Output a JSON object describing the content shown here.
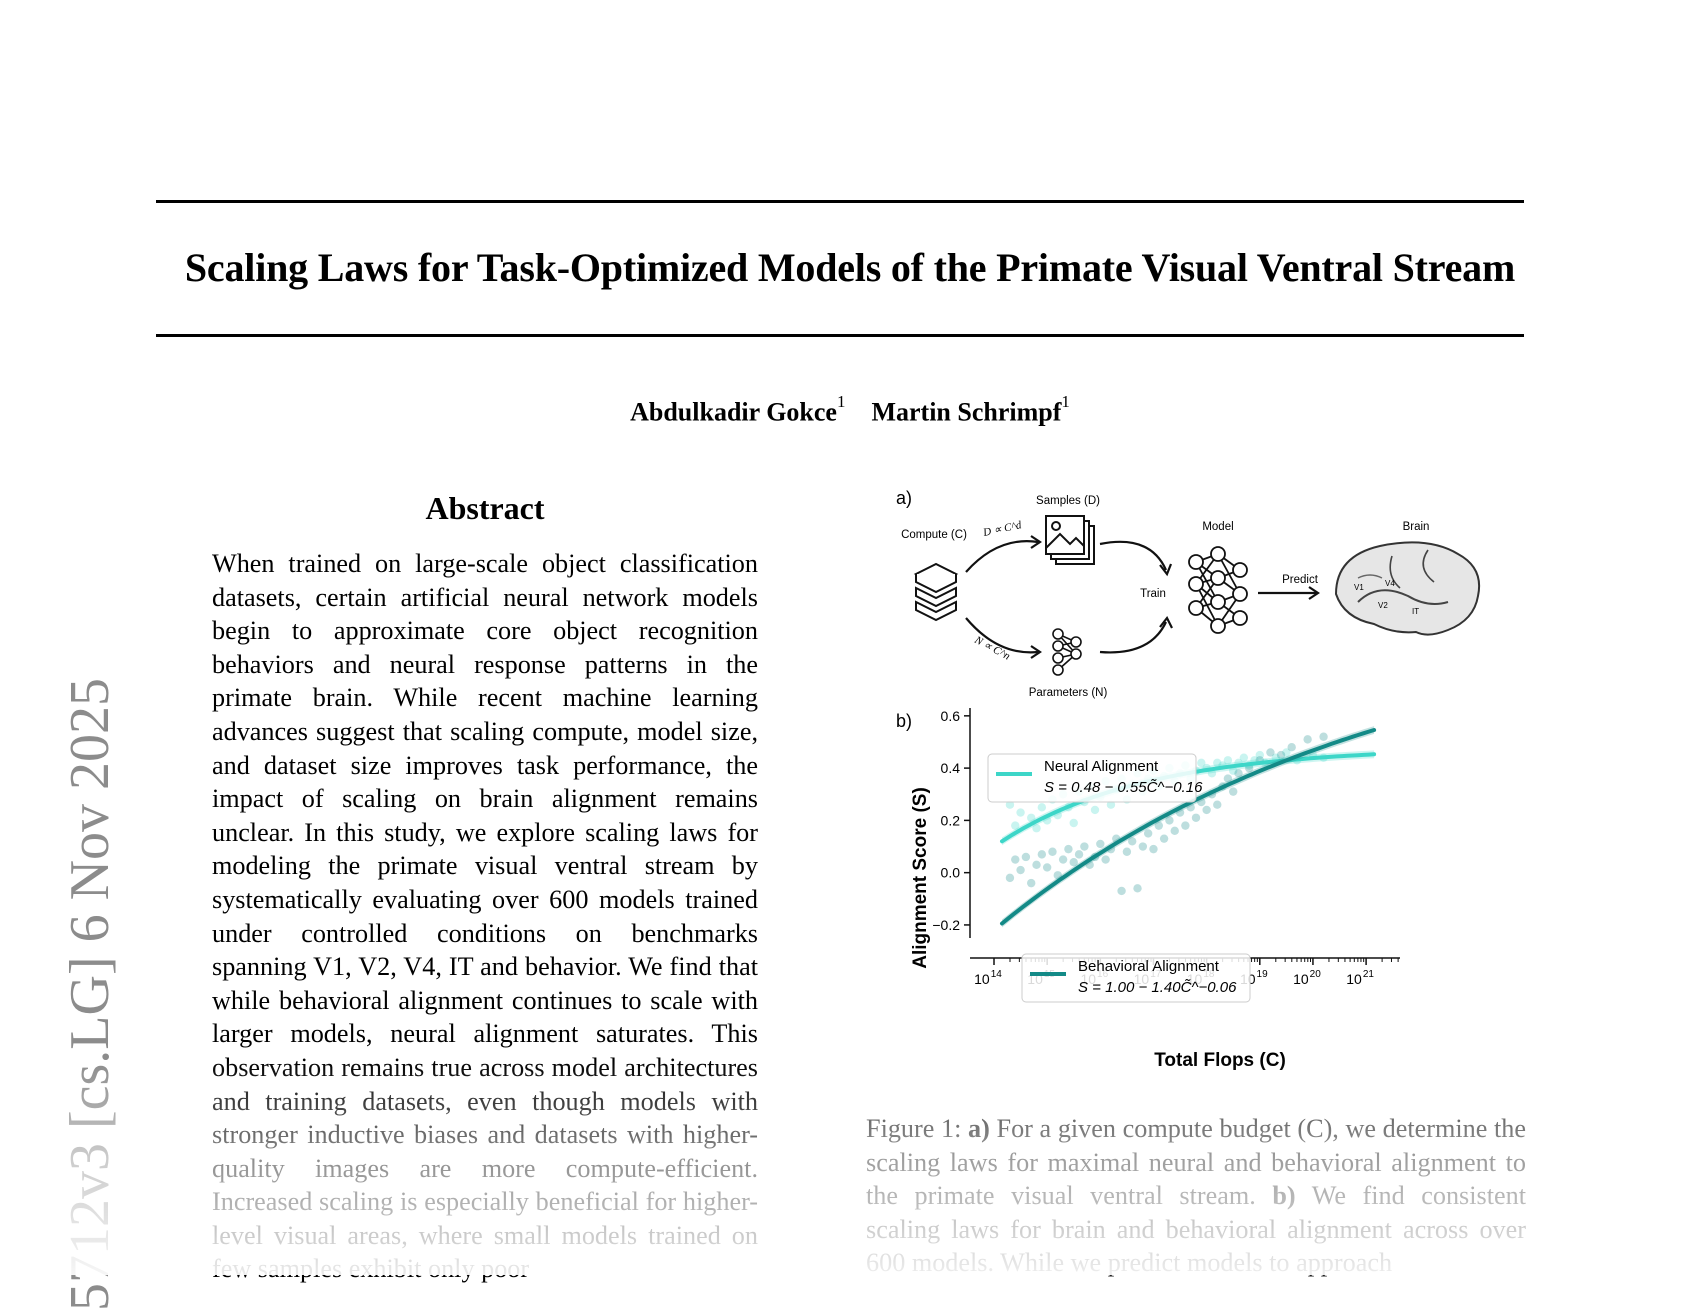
{
  "paper": {
    "title": "Scaling Laws for Task-Optimized Models of the Primate Visual Ventral Stream",
    "authors": [
      {
        "name": "Abdulkadir Gokce",
        "affiliation": "1"
      },
      {
        "name": "Martin Schrimpf",
        "affiliation": "1"
      }
    ],
    "arxiv_stamp": "5712v3  [cs.LG]  6 Nov 2025",
    "abstract_heading": "Abstract",
    "abstract": "When trained on large-scale object classification datasets, certain artificial neural network models begin to approximate core object recognition behaviors and neural response patterns in the primate brain. While recent machine learning advances suggest that scaling compute, model size, and dataset size improves task performance, the impact of scaling on brain alignment remains unclear. In this study, we explore scaling laws for modeling the primate visual ventral stream by systematically evaluating over 600 models trained under controlled conditions on benchmarks spanning V1, V2, V4, IT and behavior. We find that while behavioral alignment continues to scale with larger models, neural alignment saturates. This observation remains true across model architectures and training datasets, even though models with stronger inductive biases and datasets with higher-quality images are more compute-efficient. Increased scaling is especially beneficial for higher-level visual areas, where small models trained on few samples exhibit only poor",
    "caption_prefix": "Figure 1: ",
    "caption_a_label": "a)",
    "caption_a": " For a given compute budget (C), we determine the scaling laws for maximal neural and behavioral alignment to the primate visual ventral stream. ",
    "caption_b_label": "b)",
    "caption_b": " We find consistent scaling laws for brain and behavioral alignment across over 600 models. While we predict models to approach"
  },
  "figure_a": {
    "panel_label": "a)",
    "compute_label": "Compute (C)",
    "samples_label": "Samples (D)",
    "params_label": "Parameters (N)",
    "model_label": "Model",
    "brain_label": "Brain",
    "train_label": "Train",
    "predict_label": "Predict",
    "d_formula": "D ∝ C^d",
    "n_formula": "N ∝ C^n",
    "brain_areas": [
      "V1",
      "V4",
      "V2",
      "IT"
    ]
  },
  "chart_data": {
    "type": "scatter",
    "panel_label": "b)",
    "xlabel": "Total Flops (C)",
    "ylabel": "Alignment Score (S)",
    "x_scale": "log",
    "xlim": [
      100000000000000.0,
      1e+21
    ],
    "ylim": [
      -0.25,
      0.63
    ],
    "x_ticks": [
      "10^14",
      "10^15",
      "10^16",
      "10^17",
      "10^18",
      "10^19",
      "10^20",
      "10^21"
    ],
    "y_ticks": [
      "−0.2",
      "0.0",
      "0.2",
      "0.4",
      "0.6"
    ],
    "legend_position": "top-left / bottom-center",
    "series": [
      {
        "name": "Neural Alignment",
        "formula": "S = 0.48 − 0.55C̃^−0.16",
        "color": "#3dd6c8",
        "fit": {
          "a": 0.48,
          "b": 0.55,
          "c": 0.16,
          "x_ref_log10": 13.0
        },
        "x_range_log10": [
          14.15,
          21.2
        ],
        "points_log10x_y": [
          [
            14.3,
            0.26
          ],
          [
            14.4,
            0.18
          ],
          [
            14.5,
            0.23
          ],
          [
            14.7,
            0.21
          ],
          [
            14.8,
            0.17
          ],
          [
            14.9,
            0.25
          ],
          [
            15.0,
            0.2
          ],
          [
            15.1,
            0.28
          ],
          [
            15.2,
            0.22
          ],
          [
            15.3,
            0.3
          ],
          [
            15.4,
            0.25
          ],
          [
            15.5,
            0.19
          ],
          [
            15.6,
            0.31
          ],
          [
            15.7,
            0.27
          ],
          [
            15.8,
            0.33
          ],
          [
            15.9,
            0.24
          ],
          [
            16.0,
            0.29
          ],
          [
            16.1,
            0.35
          ],
          [
            16.2,
            0.26
          ],
          [
            16.3,
            0.32
          ],
          [
            16.4,
            0.36
          ],
          [
            16.5,
            0.28
          ],
          [
            16.6,
            0.34
          ],
          [
            16.7,
            0.38
          ],
          [
            16.8,
            0.31
          ],
          [
            16.9,
            0.36
          ],
          [
            17.0,
            0.39
          ],
          [
            17.1,
            0.33
          ],
          [
            17.2,
            0.37
          ],
          [
            17.3,
            0.4
          ],
          [
            17.4,
            0.35
          ],
          [
            17.5,
            0.38
          ],
          [
            17.6,
            0.41
          ],
          [
            17.7,
            0.36
          ],
          [
            17.8,
            0.39
          ],
          [
            17.9,
            0.42
          ],
          [
            18.0,
            0.4
          ],
          [
            18.1,
            0.38
          ],
          [
            18.2,
            0.42
          ],
          [
            18.3,
            0.41
          ],
          [
            18.4,
            0.43
          ],
          [
            18.5,
            0.39
          ],
          [
            18.6,
            0.42
          ],
          [
            18.7,
            0.44
          ],
          [
            18.8,
            0.41
          ],
          [
            18.9,
            0.43
          ],
          [
            19.0,
            0.45
          ],
          [
            19.1,
            0.42
          ],
          [
            19.3,
            0.44
          ],
          [
            19.5,
            0.46
          ],
          [
            19.7,
            0.43
          ],
          [
            20.0,
            0.45
          ],
          [
            20.2,
            0.44
          ]
        ]
      },
      {
        "name": "Behavioral Alignment",
        "formula": "S = 1.00 − 1.40C̃^−0.06",
        "color": "#138a87",
        "fit": {
          "a": 1.0,
          "b": 1.4,
          "c": 0.06,
          "x_ref_log10": 13.0
        },
        "x_range_log10": [
          14.15,
          21.2
        ],
        "points_log10x_y": [
          [
            14.3,
            -0.02
          ],
          [
            14.4,
            0.05
          ],
          [
            14.5,
            0.01
          ],
          [
            14.6,
            0.06
          ],
          [
            14.7,
            -0.04
          ],
          [
            14.8,
            0.03
          ],
          [
            14.9,
            0.07
          ],
          [
            15.0,
            0.02
          ],
          [
            15.1,
            0.08
          ],
          [
            15.2,
            -0.01
          ],
          [
            15.3,
            0.05
          ],
          [
            15.4,
            0.09
          ],
          [
            15.5,
            0.04
          ],
          [
            15.6,
            0.07
          ],
          [
            15.7,
            0.1
          ],
          [
            15.8,
            0.03
          ],
          [
            15.9,
            0.06
          ],
          [
            16.0,
            0.11
          ],
          [
            16.1,
            0.05
          ],
          [
            16.2,
            0.09
          ],
          [
            16.3,
            0.13
          ],
          [
            16.4,
            -0.07
          ],
          [
            16.5,
            0.08
          ],
          [
            16.6,
            0.12
          ],
          [
            16.7,
            -0.06
          ],
          [
            16.8,
            0.1
          ],
          [
            16.9,
            0.15
          ],
          [
            17.0,
            0.09
          ],
          [
            17.1,
            0.18
          ],
          [
            17.2,
            0.13
          ],
          [
            17.3,
            0.2
          ],
          [
            17.4,
            0.16
          ],
          [
            17.5,
            0.23
          ],
          [
            17.6,
            0.18
          ],
          [
            17.7,
            0.25
          ],
          [
            17.8,
            0.21
          ],
          [
            17.9,
            0.27
          ],
          [
            18.0,
            0.24
          ],
          [
            18.1,
            0.3
          ],
          [
            18.2,
            0.26
          ],
          [
            18.3,
            0.33
          ],
          [
            18.4,
            0.36
          ],
          [
            18.5,
            0.31
          ],
          [
            18.6,
            0.38
          ],
          [
            18.8,
            0.4
          ],
          [
            19.0,
            0.43
          ],
          [
            19.2,
            0.46
          ],
          [
            19.4,
            0.45
          ],
          [
            19.6,
            0.48
          ],
          [
            19.9,
            0.51
          ],
          [
            20.2,
            0.52
          ]
        ]
      }
    ]
  }
}
